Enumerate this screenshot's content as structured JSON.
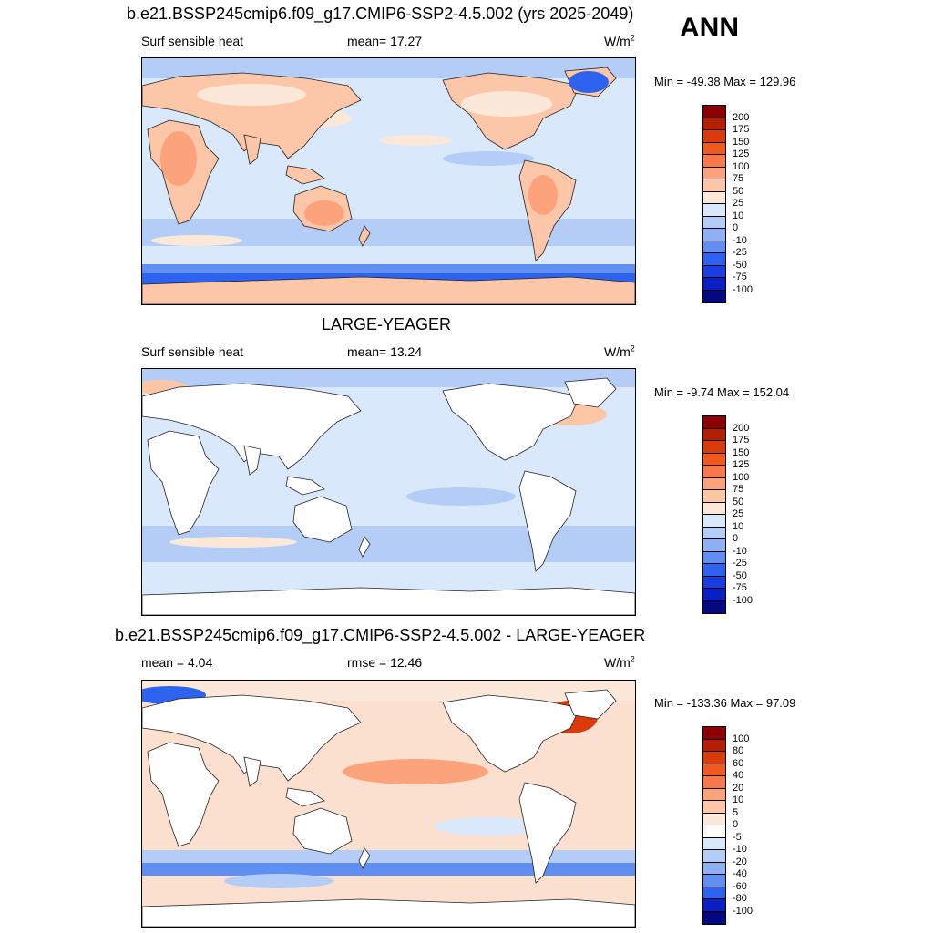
{
  "header": {
    "case_title": "b.e21.BSSP245cmip6.f09_g17.CMIP6-SSP2-4.5.002 (yrs 2025-2049)",
    "season": "ANN"
  },
  "panels": [
    {
      "id": "case",
      "left_label": "Surf sensible heat",
      "center_label": "mean=  17.27",
      "units": "W/m",
      "units_sup": "2",
      "minmax": "Min = -49.38 Max = 129.96",
      "colorbar": {
        "labels": [
          "200",
          "175",
          "150",
          "125",
          "100",
          "75",
          "50",
          "25",
          "10",
          "0",
          "-10",
          "-25",
          "-50",
          "-75",
          "-100"
        ],
        "colors": [
          "#8b0000",
          "#b22000",
          "#d93b0b",
          "#f15a1e",
          "#f7794b",
          "#fca37c",
          "#fdc7a5",
          "#fce8d8",
          "#d9e9fb",
          "#b4cdf7",
          "#8fb0f3",
          "#5f8ff1",
          "#2d63ee",
          "#1a3fe0",
          "#0a1fc3",
          "#030780"
        ]
      },
      "ocean_color": "#d9e9fb",
      "land_color": "#fcc7a8"
    },
    {
      "id": "obs",
      "title": "LARGE-YEAGER",
      "left_label": "Surf sensible heat",
      "center_label": "mean=  13.24",
      "units": "W/m",
      "units_sup": "2",
      "minmax": "Min =  -9.74 Max = 152.04",
      "colorbar": {
        "labels": [
          "200",
          "175",
          "150",
          "125",
          "100",
          "75",
          "50",
          "25",
          "10",
          "0",
          "-10",
          "-25",
          "-50",
          "-75",
          "-100"
        ],
        "colors": [
          "#8b0000",
          "#b22000",
          "#d93b0b",
          "#f15a1e",
          "#f7794b",
          "#fca37c",
          "#fdc7a5",
          "#fce8d8",
          "#d9e9fb",
          "#b4cdf7",
          "#8fb0f3",
          "#5f8ff1",
          "#2d63ee",
          "#1a3fe0",
          "#0a1fc3",
          "#030780"
        ]
      },
      "ocean_color": "#d9e9fb",
      "land_color": "#ffffff"
    },
    {
      "id": "diff",
      "title": "b.e21.BSSP245cmip6.f09_g17.CMIP6-SSP2-4.5.002 - LARGE-YEAGER",
      "left_label": "mean =   4.04",
      "center_label": "rmse =  12.46",
      "units": "W/m",
      "units_sup": "2",
      "minmax": "Min = -133.36 Max =  97.09",
      "colorbar": {
        "labels": [
          "100",
          "80",
          "60",
          "40",
          "20",
          "10",
          "5",
          "0",
          "-5",
          "-10",
          "-20",
          "-40",
          "-60",
          "-80",
          "-100"
        ],
        "colors": [
          "#8b0000",
          "#b22000",
          "#d93b0b",
          "#f15a1e",
          "#f7794b",
          "#fca37c",
          "#fdc7a5",
          "#fce8d8",
          "#ffffff",
          "#d9e9fb",
          "#b4cdf7",
          "#8fb0f3",
          "#5f8ff1",
          "#2d63ee",
          "#0a1fc3",
          "#030780"
        ]
      },
      "ocean_color": "#fce0cf",
      "land_color": "#ffffff"
    }
  ]
}
